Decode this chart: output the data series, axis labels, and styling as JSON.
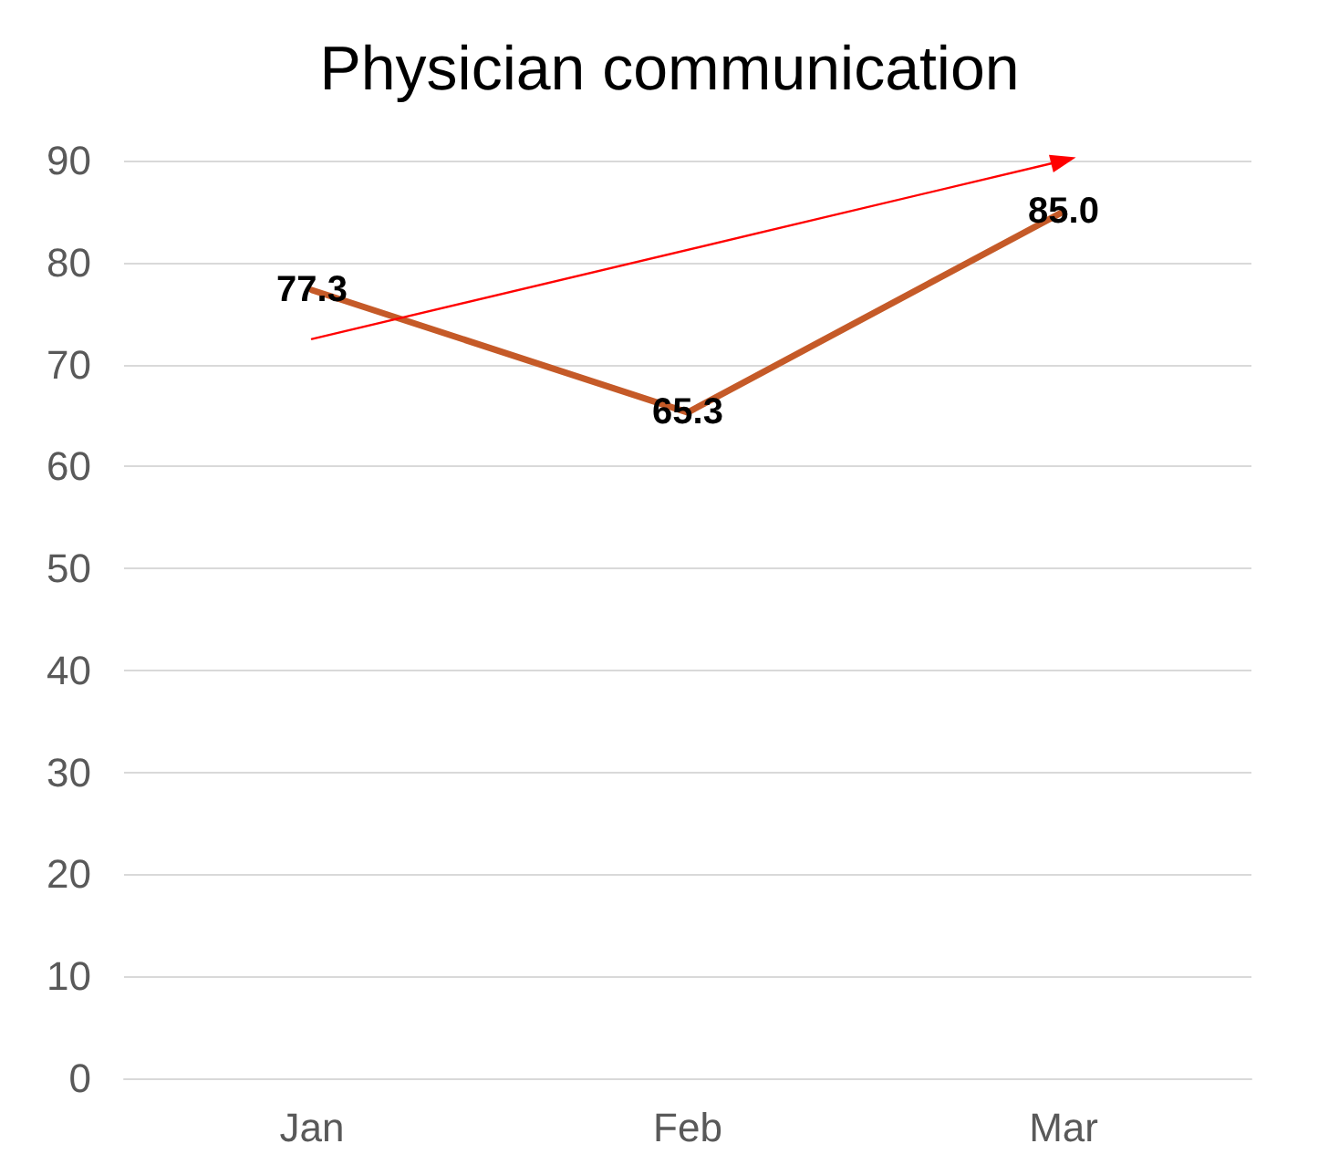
{
  "chart_data": {
    "type": "line",
    "title": "Physician communication",
    "categories": [
      "Jan",
      "Feb",
      "Mar"
    ],
    "series": [
      {
        "color": "#c55a28",
        "values": [
          77.3,
          65.3,
          85.0
        ],
        "value_labels": [
          "77.3",
          "65.3",
          "85.0"
        ]
      },
      {
        "type": "line",
        "x": [
          "Jan",
          "Mar"
        ],
        "color": "#ff0000",
        "values": [
          72.5,
          90
        ],
        "marker": "triangle"
      }
    ],
    "ylim": [
      0,
      90
    ],
    "yticks": [
      0,
      10,
      20,
      30,
      40,
      50,
      60,
      70,
      80,
      90
    ],
    "grid": "y",
    "marker": "none"
  }
}
